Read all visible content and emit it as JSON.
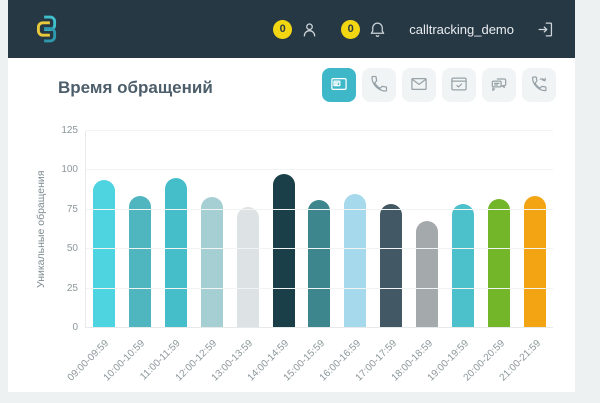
{
  "header": {
    "account_name": "calltracking_demo",
    "badges": {
      "users": "0",
      "notifications": "0"
    }
  },
  "page": {
    "title": "Время обращений"
  },
  "toolbar": {
    "buttons": [
      {
        "name": "all-requests",
        "active": true
      },
      {
        "name": "calls",
        "active": false
      },
      {
        "name": "email",
        "active": false
      },
      {
        "name": "site-form",
        "active": false
      },
      {
        "name": "chat",
        "active": false
      },
      {
        "name": "callback",
        "active": false
      }
    ]
  },
  "chart_data": {
    "type": "bar",
    "title": "Время обращений",
    "xlabel": "",
    "ylabel": "Уникальные обращения",
    "ylim": [
      0,
      125
    ],
    "yticks": [
      0,
      25,
      50,
      75,
      100,
      125
    ],
    "grid": true,
    "legend": false,
    "categories": [
      "09:00-09:59",
      "10:00-10:59",
      "11:00-11:59",
      "12:00-12:59",
      "13:00-13:59",
      "14:00-14:59",
      "15:00-15:59",
      "16:00-16:59",
      "17:00-17:59",
      "18:00-18:59",
      "19:00-19:59",
      "20:00-20:59",
      "21:00-21:59"
    ],
    "values": [
      94,
      84,
      95,
      83,
      77,
      98,
      81,
      85,
      79,
      68,
      79,
      82,
      84
    ],
    "bar_colors": [
      "#4ed4e0",
      "#4fb6c0",
      "#45bec9",
      "#a6cfd4",
      "#dde2e4",
      "#1b3f48",
      "#3d868e",
      "#a6d9eb",
      "#425864",
      "#a4a9ac",
      "#4cc0cb",
      "#74b62a",
      "#f2a412"
    ]
  },
  "colors": {
    "accent": "#3eb7c9",
    "header_bg": "#273845",
    "page_bg": "#eef1f2",
    "badge": "#f2d612",
    "title_text": "#4d5e6b",
    "axis_text": "#8c979b"
  }
}
